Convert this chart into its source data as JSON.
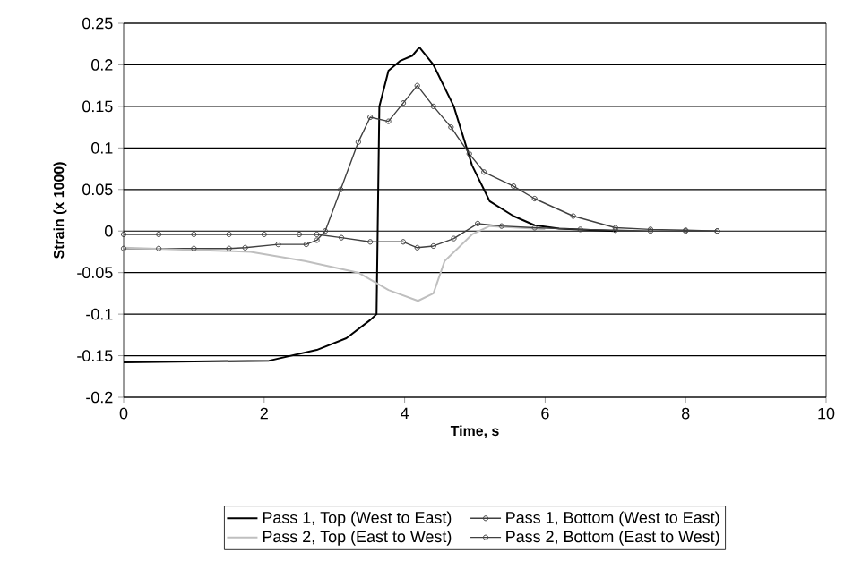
{
  "chart_data": {
    "type": "line",
    "xlabel": "Time, s",
    "ylabel": "Strain (x 1000)",
    "xlim": [
      0,
      10
    ],
    "ylim": [
      -0.2,
      0.25
    ],
    "xticks": [
      0,
      2,
      4,
      6,
      8,
      10
    ],
    "yticks": [
      -0.2,
      -0.15,
      -0.1,
      -0.05,
      0,
      0.05,
      0.1,
      0.15,
      0.2,
      0.25
    ],
    "grid": "y",
    "legend": "bottom",
    "series": [
      {
        "name": "Pass 1, Top (West to East)",
        "color": "#000000",
        "marker": "none",
        "x": [
          0,
          1,
          2.07,
          2.75,
          3.17,
          3.51,
          3.6,
          3.64,
          3.77,
          3.94,
          4.11,
          4.21,
          4.41,
          4.7,
          4.96,
          5.21,
          5.55,
          5.85,
          6.2,
          7
        ],
        "values": [
          -0.158,
          -0.157,
          -0.156,
          -0.143,
          -0.129,
          -0.107,
          -0.1,
          0.15,
          0.193,
          0.205,
          0.211,
          0.221,
          0.2,
          0.15,
          0.079,
          0.036,
          0.018,
          0.007,
          0.003,
          0.0
        ]
      },
      {
        "name": "Pass 1, Bottom (West to East)",
        "color": "#404040",
        "marker": "circle",
        "x": [
          0,
          0.5,
          1,
          1.5,
          1.73,
          2.2,
          2.6,
          2.75,
          2.87,
          3.09,
          3.34,
          3.51,
          3.77,
          3.98,
          4.18,
          4.41,
          4.66,
          4.92,
          5.13,
          5.55,
          5.85,
          6.4,
          7,
          7.5,
          8,
          8.45
        ],
        "values": [
          -0.021,
          -0.021,
          -0.021,
          -0.021,
          -0.02,
          -0.016,
          -0.016,
          -0.011,
          0.0,
          0.05,
          0.107,
          0.137,
          0.132,
          0.154,
          0.175,
          0.15,
          0.125,
          0.093,
          0.071,
          0.054,
          0.039,
          0.018,
          0.004,
          0.002,
          0.001,
          0.0
        ]
      },
      {
        "name": "Pass 2, Top (East to West)",
        "color": "#bfbfbf",
        "marker": "none",
        "x": [
          0,
          1.81,
          2.58,
          3.34,
          3.77,
          4.19,
          4.41,
          4.57,
          4.96,
          5.21,
          6
        ],
        "values": [
          -0.02,
          -0.025,
          -0.036,
          -0.05,
          -0.071,
          -0.084,
          -0.075,
          -0.036,
          -0.004,
          0.006,
          0.002
        ]
      },
      {
        "name": "Pass 2, Bottom (East to West)",
        "color": "#404040",
        "marker": "circle",
        "x": [
          0,
          0.5,
          1,
          1.5,
          2,
          2.5,
          2.75,
          3.1,
          3.51,
          3.98,
          4.18,
          4.41,
          4.7,
          5.04,
          5.38,
          5.85,
          6.5,
          7,
          7.5,
          8,
          8.45
        ],
        "values": [
          -0.004,
          -0.004,
          -0.004,
          -0.004,
          -0.004,
          -0.004,
          -0.004,
          -0.008,
          -0.013,
          -0.013,
          -0.02,
          -0.018,
          -0.009,
          0.009,
          0.006,
          0.004,
          0.002,
          0.001,
          0.0,
          0.0,
          0.0
        ]
      }
    ]
  }
}
